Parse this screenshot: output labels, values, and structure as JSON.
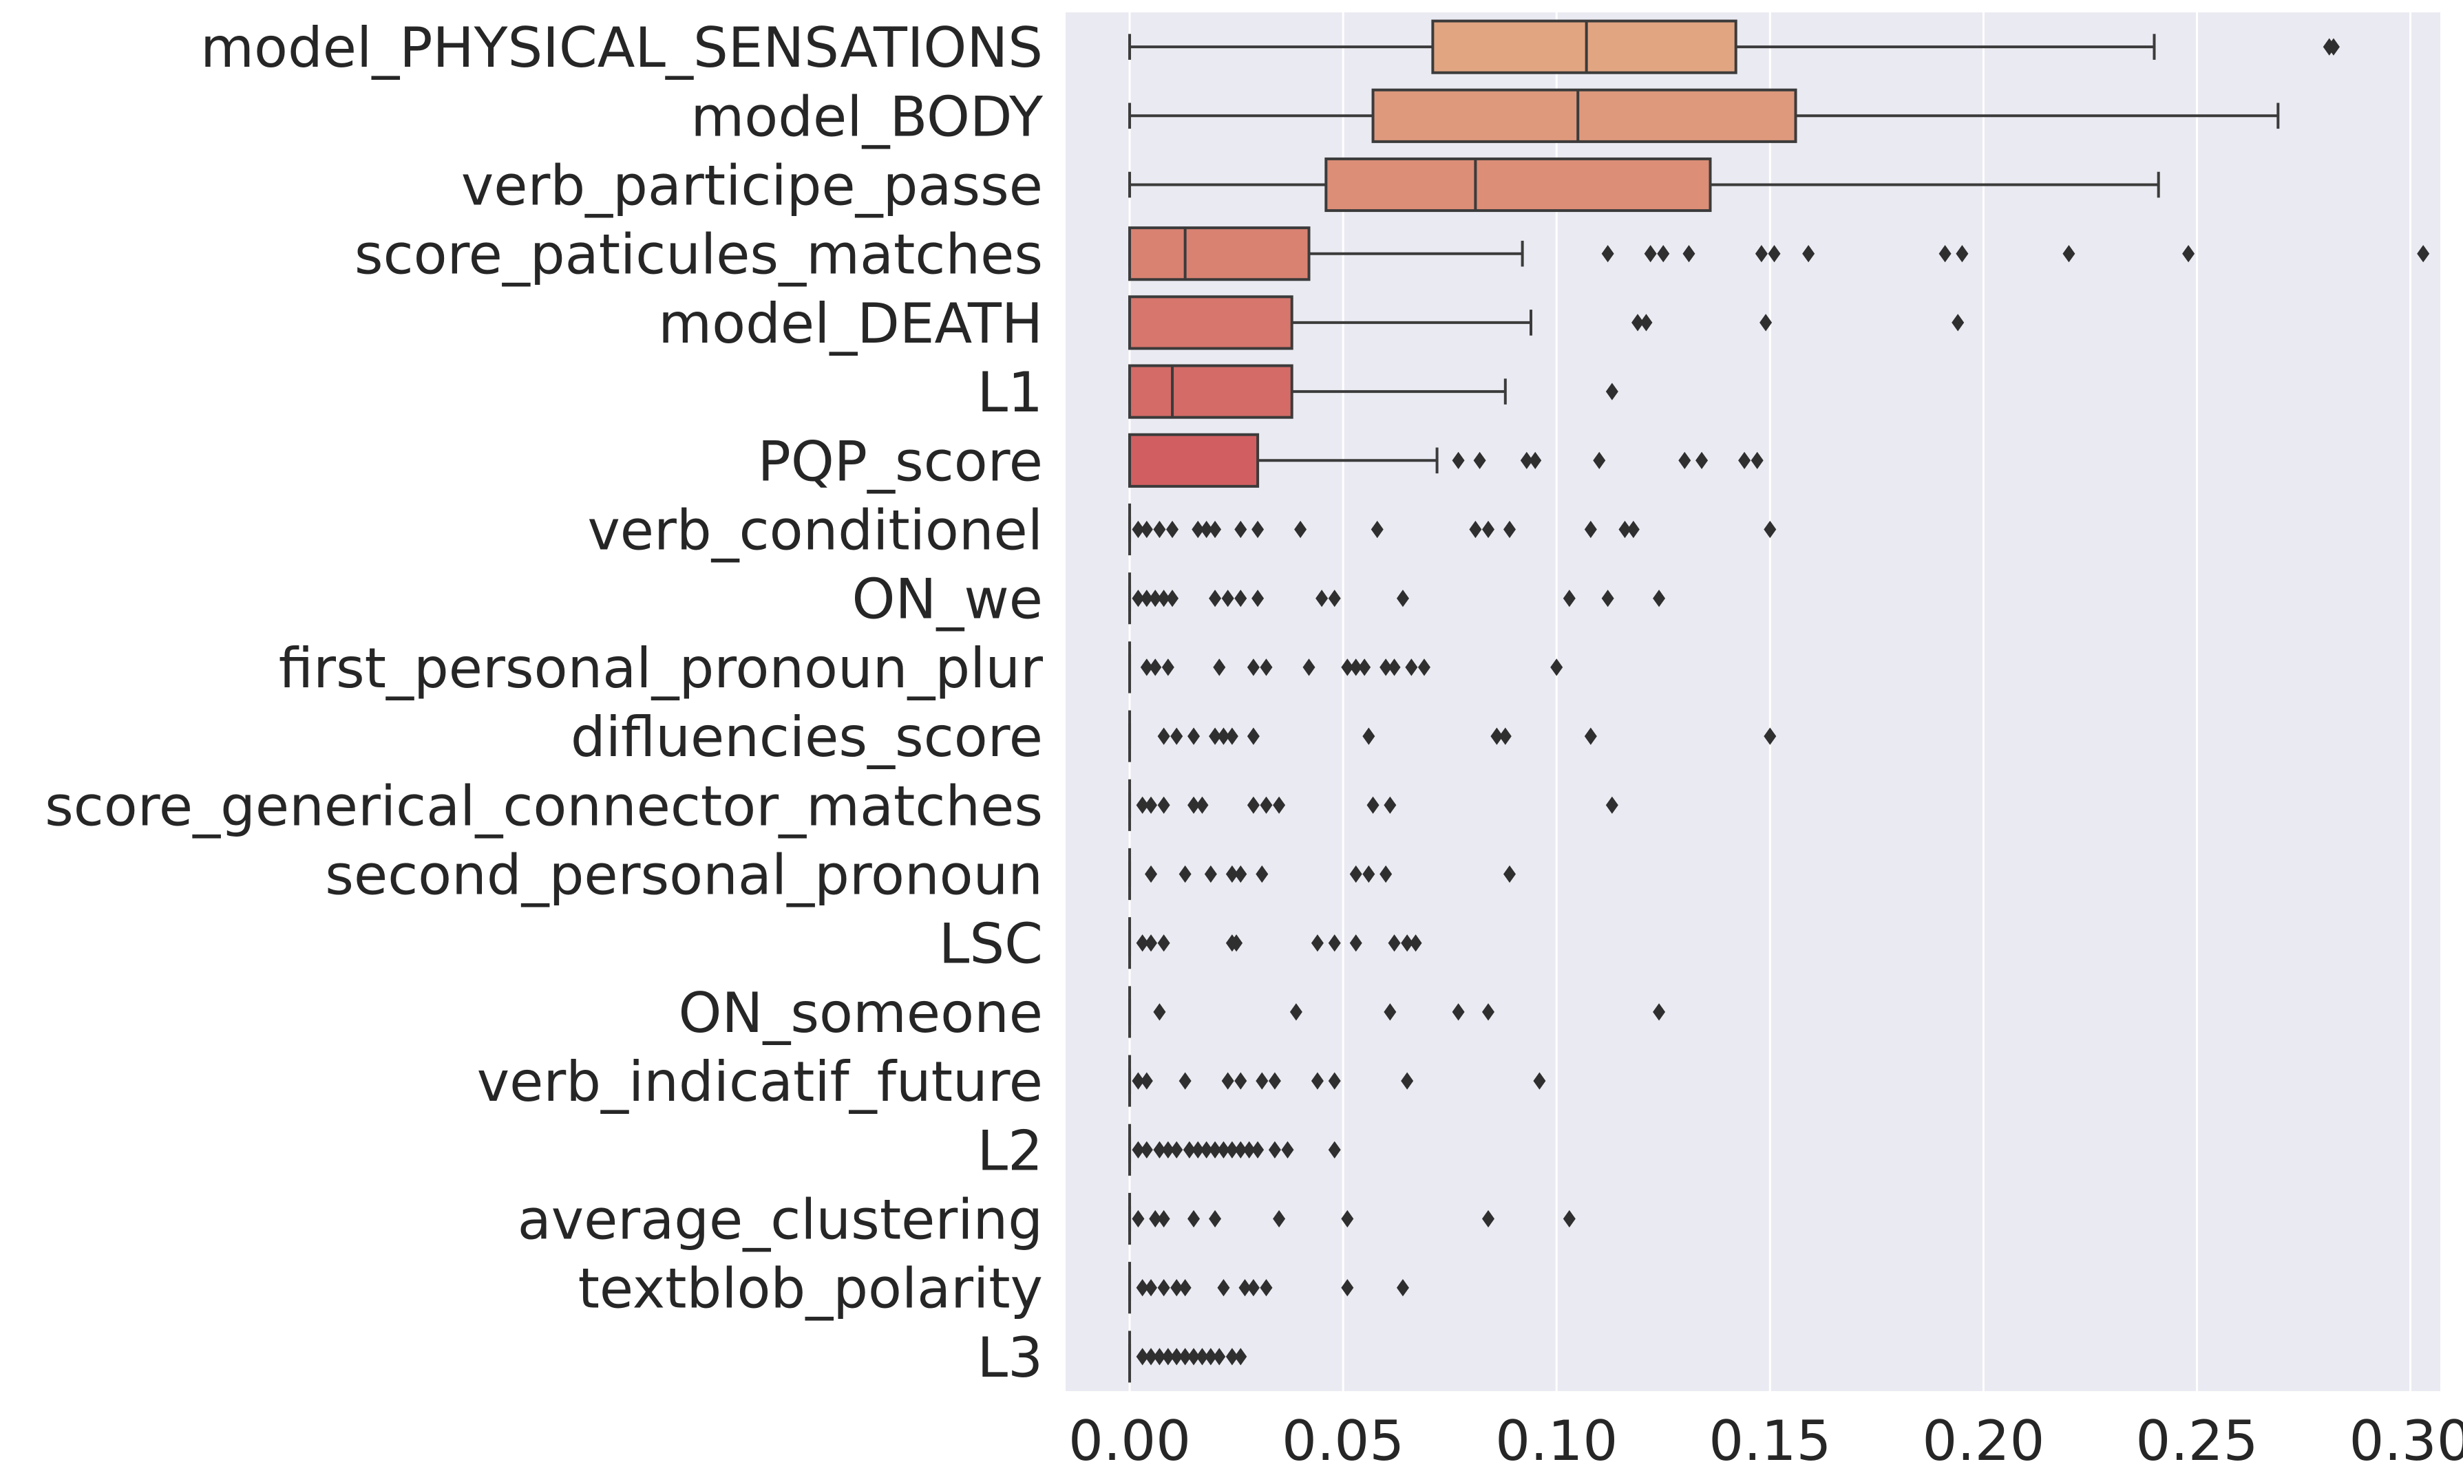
{
  "chart_data": {
    "type": "box",
    "orientation": "horizontal",
    "title": "",
    "xlabel": "",
    "ylabel": "",
    "xlim": [
      -0.015,
      0.307
    ],
    "xticks": [
      "0.00",
      "0.05",
      "0.10",
      "0.15",
      "0.20",
      "0.25",
      "0.30"
    ],
    "grid": true,
    "background": "#EAEAF2",
    "palette_start": "#E1A582",
    "palette_end": "#D15F62",
    "categories": [
      "model_PHYSICAL_SENSATIONS",
      "model_BODY",
      "verb_participe_passe",
      "score_paticules_matches",
      "model_DEATH",
      "L1",
      "PQP_score",
      "verb_conditionel",
      "ON_we",
      "first_personal_pronoun_plur",
      "difluencies_score",
      "score_generical_connector_matches",
      "second_personal_pronoun",
      "LSC",
      "ON_someone",
      "verb_indicatif_future",
      "L2",
      "average_clustering",
      "textblob_polarity",
      "L3"
    ],
    "boxes": [
      {
        "whislo": 0.0,
        "q1": 0.071,
        "med": 0.107,
        "q3": 0.142,
        "whishi": 0.24,
        "fliers": [
          0.281,
          0.282
        ]
      },
      {
        "whislo": 0.0,
        "q1": 0.057,
        "med": 0.105,
        "q3": 0.156,
        "whishi": 0.269,
        "fliers": []
      },
      {
        "whislo": 0.0,
        "q1": 0.046,
        "med": 0.081,
        "q3": 0.136,
        "whishi": 0.241,
        "fliers": []
      },
      {
        "whislo": 0.0,
        "q1": 0.0,
        "med": 0.013,
        "q3": 0.042,
        "whishi": 0.092,
        "fliers": [
          0.112,
          0.122,
          0.125,
          0.131,
          0.148,
          0.151,
          0.159,
          0.191,
          0.195,
          0.22,
          0.248,
          0.303
        ]
      },
      {
        "whislo": 0.0,
        "q1": 0.0,
        "med": 0.0,
        "q3": 0.038,
        "whishi": 0.094,
        "fliers": [
          0.119,
          0.121,
          0.149,
          0.194
        ]
      },
      {
        "whislo": 0.0,
        "q1": 0.0,
        "med": 0.01,
        "q3": 0.038,
        "whishi": 0.088,
        "fliers": [
          0.113
        ]
      },
      {
        "whislo": 0.0,
        "q1": 0.0,
        "med": 0.0,
        "q3": 0.03,
        "whishi": 0.072,
        "fliers": [
          0.077,
          0.082,
          0.093,
          0.095,
          0.11,
          0.13,
          0.134,
          0.144,
          0.147
        ]
      },
      {
        "whislo": 0.0,
        "q1": 0.0,
        "med": 0.0,
        "q3": 0.0,
        "whishi": 0.0,
        "fliers": [
          0.002,
          0.004,
          0.007,
          0.01,
          0.016,
          0.018,
          0.02,
          0.026,
          0.03,
          0.04,
          0.058,
          0.081,
          0.084,
          0.089,
          0.108,
          0.116,
          0.118,
          0.15
        ]
      },
      {
        "whislo": 0.0,
        "q1": 0.0,
        "med": 0.0,
        "q3": 0.0,
        "whishi": 0.0,
        "fliers": [
          0.002,
          0.004,
          0.006,
          0.008,
          0.01,
          0.02,
          0.023,
          0.026,
          0.03,
          0.045,
          0.048,
          0.064,
          0.103,
          0.112,
          0.124
        ]
      },
      {
        "whislo": 0.0,
        "q1": 0.0,
        "med": 0.0,
        "q3": 0.0,
        "whishi": 0.0,
        "fliers": [
          0.004,
          0.006,
          0.009,
          0.021,
          0.029,
          0.032,
          0.042,
          0.051,
          0.053,
          0.055,
          0.06,
          0.062,
          0.066,
          0.069,
          0.1
        ]
      },
      {
        "whislo": 0.0,
        "q1": 0.0,
        "med": 0.0,
        "q3": 0.0,
        "whishi": 0.0,
        "fliers": [
          0.008,
          0.011,
          0.015,
          0.02,
          0.022,
          0.024,
          0.029,
          0.056,
          0.086,
          0.088,
          0.108,
          0.15
        ]
      },
      {
        "whislo": 0.0,
        "q1": 0.0,
        "med": 0.0,
        "q3": 0.0,
        "whishi": 0.0,
        "fliers": [
          0.003,
          0.005,
          0.008,
          0.015,
          0.017,
          0.029,
          0.032,
          0.035,
          0.057,
          0.061,
          0.113
        ]
      },
      {
        "whislo": 0.0,
        "q1": 0.0,
        "med": 0.0,
        "q3": 0.0,
        "whishi": 0.0,
        "fliers": [
          0.005,
          0.013,
          0.019,
          0.024,
          0.026,
          0.031,
          0.053,
          0.056,
          0.06,
          0.089
        ]
      },
      {
        "whislo": 0.0,
        "q1": 0.0,
        "med": 0.0,
        "q3": 0.0,
        "whishi": 0.0,
        "fliers": [
          0.003,
          0.005,
          0.008,
          0.024,
          0.025,
          0.044,
          0.048,
          0.053,
          0.062,
          0.065,
          0.067
        ]
      },
      {
        "whislo": 0.0,
        "q1": 0.0,
        "med": 0.0,
        "q3": 0.0,
        "whishi": 0.0,
        "fliers": [
          0.007,
          0.039,
          0.061,
          0.077,
          0.084,
          0.124
        ]
      },
      {
        "whislo": 0.0,
        "q1": 0.0,
        "med": 0.0,
        "q3": 0.0,
        "whishi": 0.0,
        "fliers": [
          0.002,
          0.004,
          0.013,
          0.023,
          0.026,
          0.031,
          0.034,
          0.044,
          0.048,
          0.065,
          0.096
        ]
      },
      {
        "whislo": 0.0,
        "q1": 0.0,
        "med": 0.0,
        "q3": 0.0,
        "whishi": 0.0,
        "fliers": [
          0.002,
          0.004,
          0.007,
          0.009,
          0.011,
          0.014,
          0.016,
          0.018,
          0.02,
          0.022,
          0.024,
          0.026,
          0.028,
          0.03,
          0.034,
          0.037,
          0.048
        ]
      },
      {
        "whislo": 0.0,
        "q1": 0.0,
        "med": 0.0,
        "q3": 0.0,
        "whishi": 0.0,
        "fliers": [
          0.002,
          0.006,
          0.008,
          0.015,
          0.02,
          0.035,
          0.051,
          0.084,
          0.103
        ]
      },
      {
        "whislo": 0.0,
        "q1": 0.0,
        "med": 0.0,
        "q3": 0.0,
        "whishi": 0.0,
        "fliers": [
          0.003,
          0.005,
          0.008,
          0.011,
          0.013,
          0.022,
          0.027,
          0.029,
          0.032,
          0.051,
          0.064
        ]
      },
      {
        "whislo": 0.0,
        "q1": 0.0,
        "med": 0.0,
        "q3": 0.0,
        "whishi": 0.0,
        "fliers": [
          0.003,
          0.005,
          0.007,
          0.009,
          0.011,
          0.013,
          0.015,
          0.017,
          0.019,
          0.021,
          0.024,
          0.026
        ]
      }
    ]
  }
}
